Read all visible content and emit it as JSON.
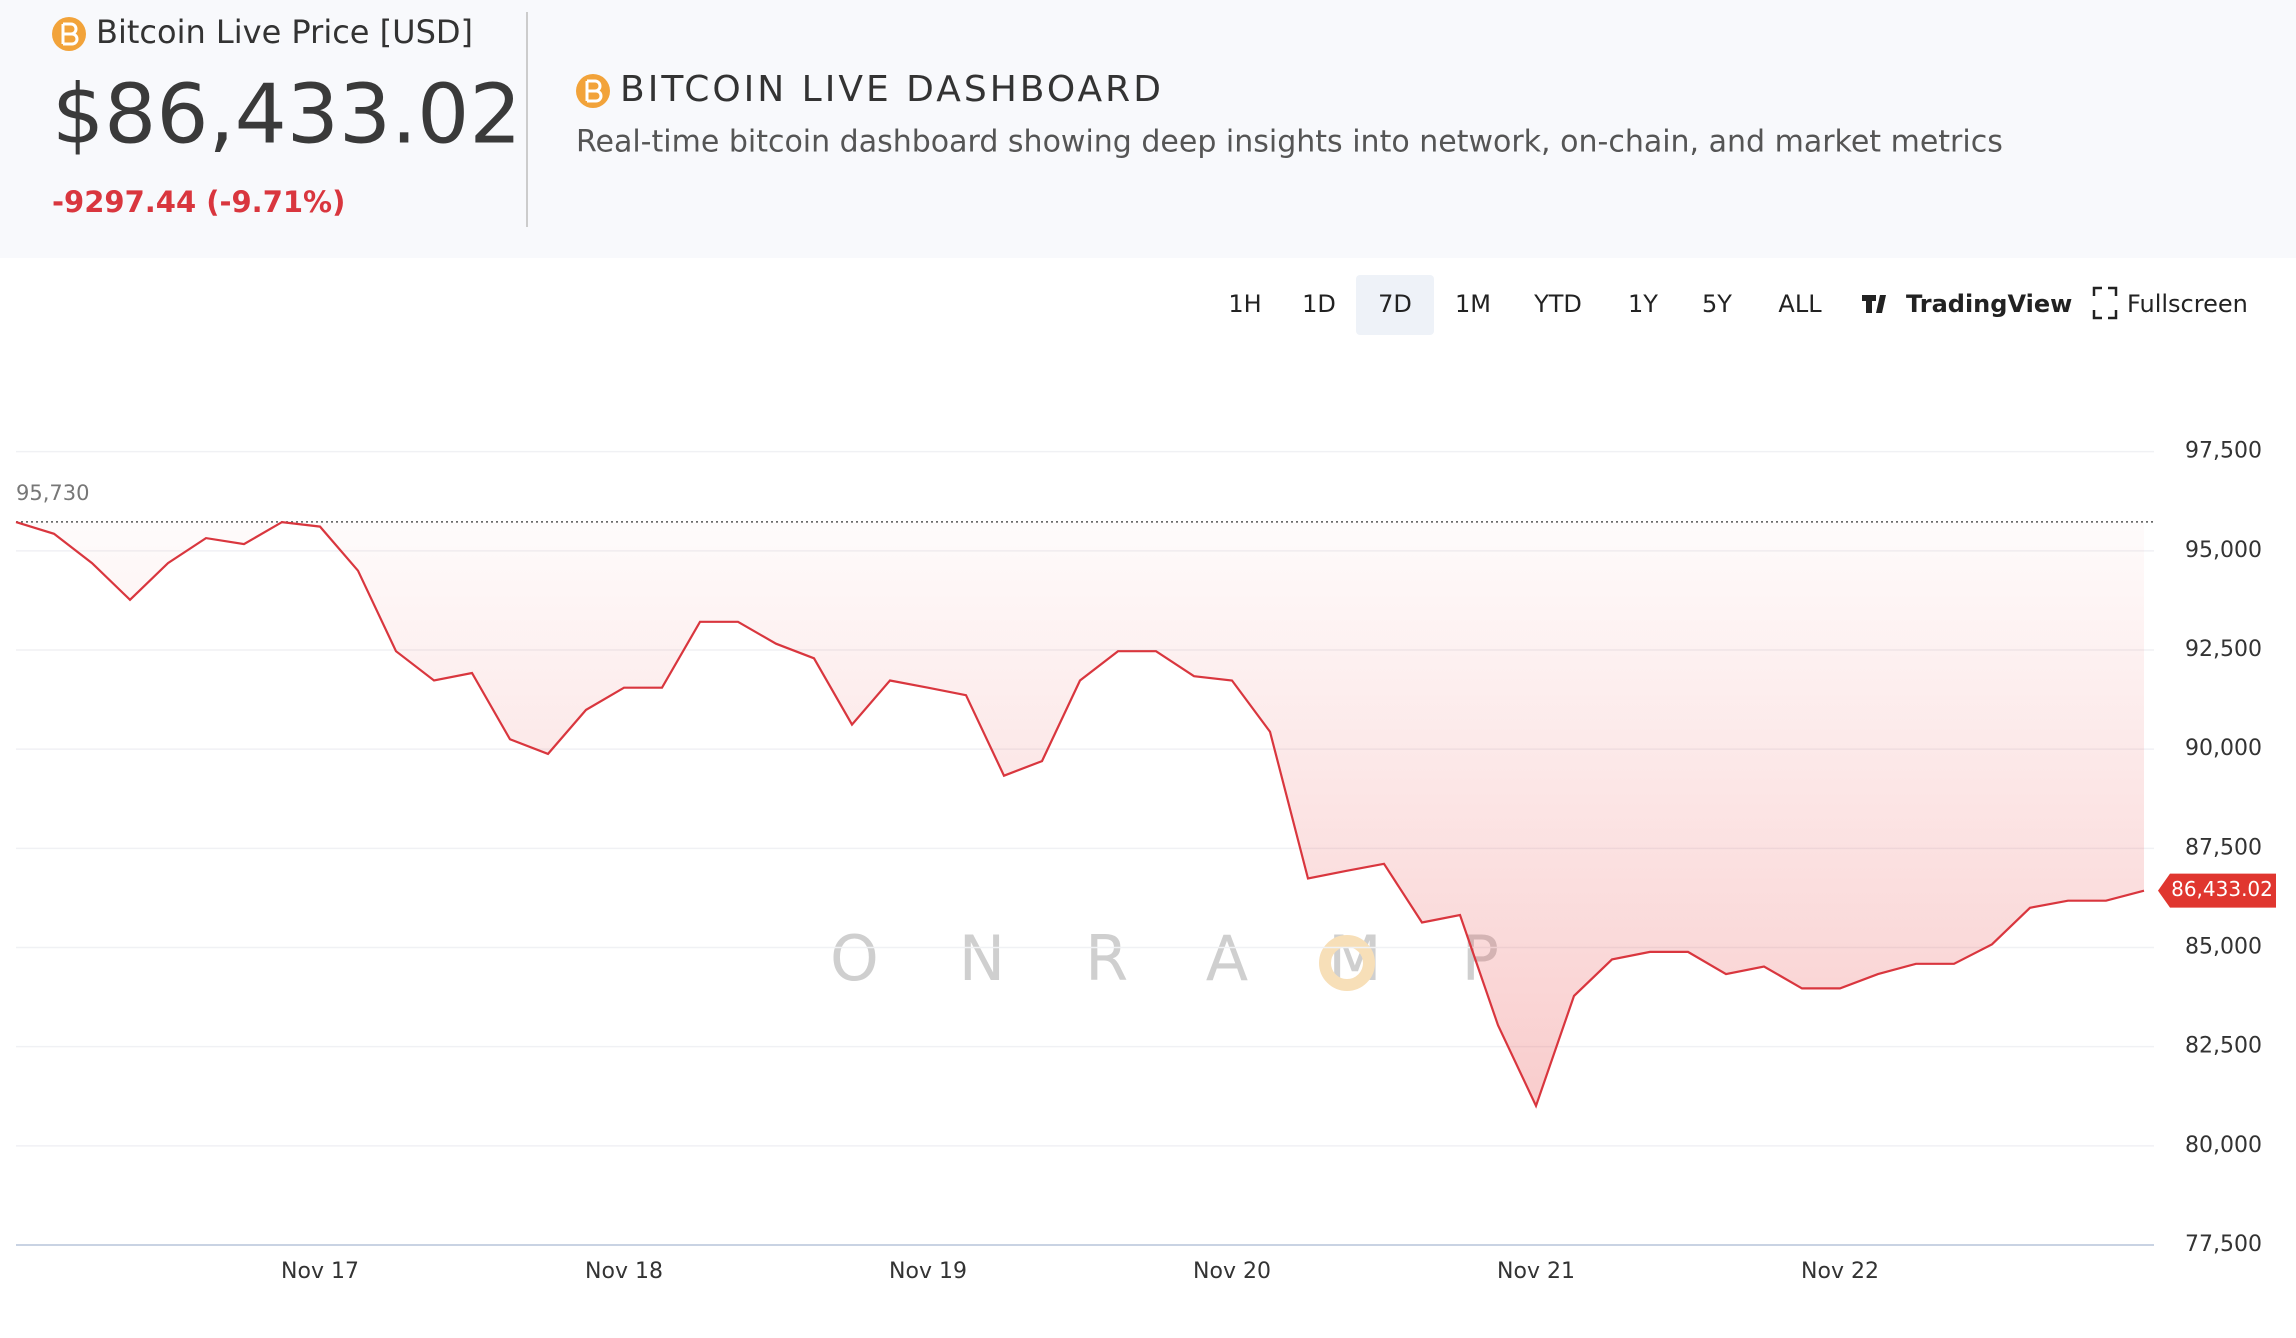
{
  "header": {
    "price_title": "Bitcoin Live Price [USD]",
    "price": "$86,433.02",
    "change": "-9297.44 (-9.71%)",
    "dashboard_title": "BITCOIN LIVE DASHBOARD",
    "subtitle": "Real-time bitcoin dashboard showing deep insights into network, on-chain, and market metrics"
  },
  "toolbar": {
    "ranges": [
      "1H",
      "1D",
      "7D",
      "1M",
      "YTD",
      "1Y",
      "5Y",
      "ALL"
    ],
    "selected": "7D",
    "tradingview": "TradingView",
    "fullscreen": "Fullscreen"
  },
  "chart_data": {
    "type": "line",
    "color": "#d9363e",
    "watermark": "ONRAMP",
    "categories": [
      null,
      null,
      null,
      null,
      null,
      null,
      null,
      null,
      "Nov 17",
      null,
      null,
      null,
      null,
      null,
      null,
      null,
      "Nov 18",
      null,
      null,
      null,
      null,
      null,
      null,
      null,
      "Nov 19",
      null,
      null,
      null,
      null,
      null,
      null,
      null,
      "Nov 20",
      null,
      null,
      null,
      null,
      null,
      null,
      null,
      "Nov 21",
      null,
      null,
      null,
      null,
      null,
      null,
      null,
      "Nov 22",
      null,
      null,
      null,
      null,
      null,
      null,
      null,
      null
    ],
    "values": [
      95725,
      95430,
      94690,
      93765,
      94690,
      95320,
      95170,
      95725,
      95610,
      94500,
      92470,
      91730,
      91920,
      90250,
      89880,
      90990,
      91550,
      91550,
      93210,
      93210,
      92660,
      92290,
      90620,
      91730,
      91550,
      91360,
      89330,
      89700,
      91730,
      92470,
      92470,
      91840,
      91730,
      90440,
      86740,
      86930,
      87110,
      85630,
      85820,
      83040,
      81010,
      83780,
      84700,
      84890,
      84890,
      84330,
      84520,
      83970,
      83970,
      84330,
      84590,
      84590,
      85080,
      86000,
      86180,
      86180,
      86433.02
    ],
    "value_labels": [
      null,
      null,
      null,
      null,
      null,
      null,
      null,
      null,
      null,
      null,
      null,
      null,
      null,
      null,
      null,
      null,
      null,
      null,
      null,
      null,
      null,
      null,
      null,
      null,
      null,
      null,
      null,
      null,
      null,
      null,
      null,
      null,
      null,
      null,
      null,
      null,
      null,
      null,
      null,
      null,
      null,
      null,
      null,
      null,
      null,
      null,
      null,
      null,
      null,
      null,
      null,
      null,
      null,
      null,
      null,
      null,
      "86,433.02"
    ],
    "reference_line": {
      "value": 95730,
      "label": "95,730"
    },
    "ylim": [
      77500,
      98500
    ],
    "yticks": [
      {
        "value": 77500,
        "label": "77,500"
      },
      {
        "value": 80000,
        "label": "80,000"
      },
      {
        "value": 82500,
        "label": "82,500"
      },
      {
        "value": 85000,
        "label": "85,000"
      },
      {
        "value": 87500,
        "label": "87,500"
      },
      {
        "value": 90000,
        "label": "90,000"
      },
      {
        "value": 92500,
        "label": "92,500"
      },
      {
        "value": 95000,
        "label": "95,000"
      },
      {
        "value": 97500,
        "label": "97,500"
      }
    ],
    "grid": true
  }
}
